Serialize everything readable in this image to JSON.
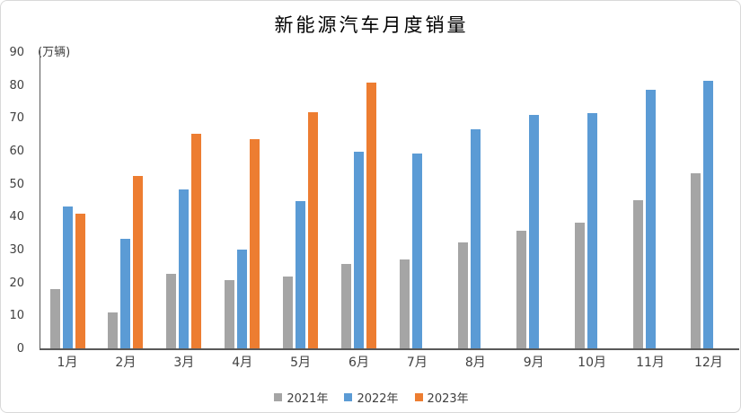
{
  "chart_data": {
    "type": "bar",
    "title": "新能源汽车月度销量",
    "ylabel": "(万辆)",
    "xlabel": "",
    "categories": [
      "1月",
      "2月",
      "3月",
      "4月",
      "5月",
      "6月",
      "7月",
      "8月",
      "9月",
      "10月",
      "11月",
      "12月"
    ],
    "series": [
      {
        "name": "2021年",
        "color": "#A5A5A5",
        "values": [
          17.9,
          11.0,
          22.6,
          20.6,
          21.7,
          25.6,
          27.1,
          32.1,
          35.7,
          38.3,
          45.0,
          53.1
        ]
      },
      {
        "name": "2022年",
        "color": "#5B9BD5",
        "values": [
          43.1,
          33.4,
          48.4,
          29.9,
          44.7,
          59.6,
          59.3,
          66.6,
          70.8,
          71.4,
          78.6,
          81.4
        ]
      },
      {
        "name": "2023年",
        "color": "#ED7D31",
        "values": [
          40.8,
          52.5,
          65.3,
          63.6,
          71.7,
          80.6,
          null,
          null,
          null,
          null,
          null,
          null
        ]
      }
    ],
    "y_ticks": [
      0,
      10,
      20,
      30,
      40,
      50,
      60,
      70,
      80,
      90
    ],
    "ylim": [
      0,
      90
    ],
    "grid": false,
    "legend_position": "bottom",
    "axis_color": "#595959",
    "label_color": "#404040"
  }
}
